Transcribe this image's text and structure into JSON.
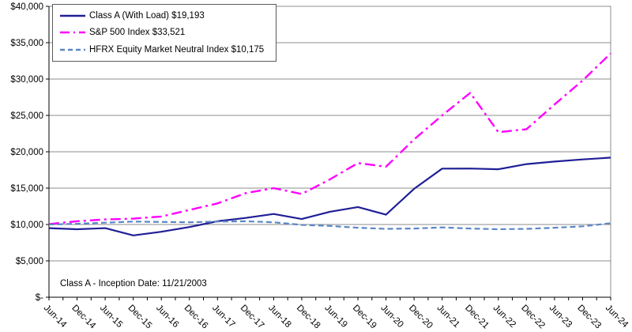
{
  "chart_data": {
    "type": "line",
    "title": "",
    "annotation": "Class A - Inception Date: 11/21/2003",
    "categories": [
      "Jun-14",
      "Dec-14",
      "Jun-15",
      "Dec-15",
      "Jun-16",
      "Dec-16",
      "Jun-17",
      "Dec-17",
      "Jun-18",
      "Dec-18",
      "Jun-19",
      "Dec-19",
      "Jun-20",
      "Dec-20",
      "Jun-21",
      "Dec-21",
      "Jun-22",
      "Dec-22",
      "Jun-23",
      "Dec-23",
      "Jun-24"
    ],
    "y_tick_labels": [
      "$-",
      "$5,000",
      "$10,000",
      "$15,000",
      "$20,000",
      "$25,000",
      "$30,000",
      "$35,000",
      "$40,000"
    ],
    "ylim": [
      0,
      40000
    ],
    "grid": "horizontal",
    "legend_position": "top-left",
    "series": [
      {
        "id": "class-a",
        "name": "Class A (With Load) $19,193",
        "color": "#1F1F96",
        "style": "solid",
        "final_value": 19193,
        "values": [
          9500,
          9350,
          9500,
          8500,
          9000,
          9650,
          10450,
          10900,
          11450,
          10750,
          11750,
          12400,
          11350,
          14900,
          17680,
          17700,
          17600,
          18300,
          18650,
          18950,
          19193
        ]
      },
      {
        "id": "sp500",
        "name": "S&P 500 Index $33,521",
        "color": "#FF00FF",
        "style": "dash-dot",
        "final_value": 33521,
        "values": [
          10050,
          10450,
          10700,
          10800,
          11100,
          12000,
          12900,
          14300,
          15000,
          14200,
          16200,
          18450,
          17950,
          21700,
          25000,
          28100,
          22700,
          23100,
          26500,
          29800,
          33521
        ]
      },
      {
        "id": "hfrx",
        "name": "HFRX Equity Market Neutral Index $10,175",
        "color": "#5B87C5",
        "style": "dashed",
        "final_value": 10175,
        "values": [
          10000,
          10100,
          10250,
          10400,
          10350,
          10300,
          10400,
          10450,
          10300,
          9950,
          9800,
          9550,
          9400,
          9450,
          9600,
          9450,
          9350,
          9400,
          9550,
          9750,
          10175
        ]
      }
    ]
  }
}
